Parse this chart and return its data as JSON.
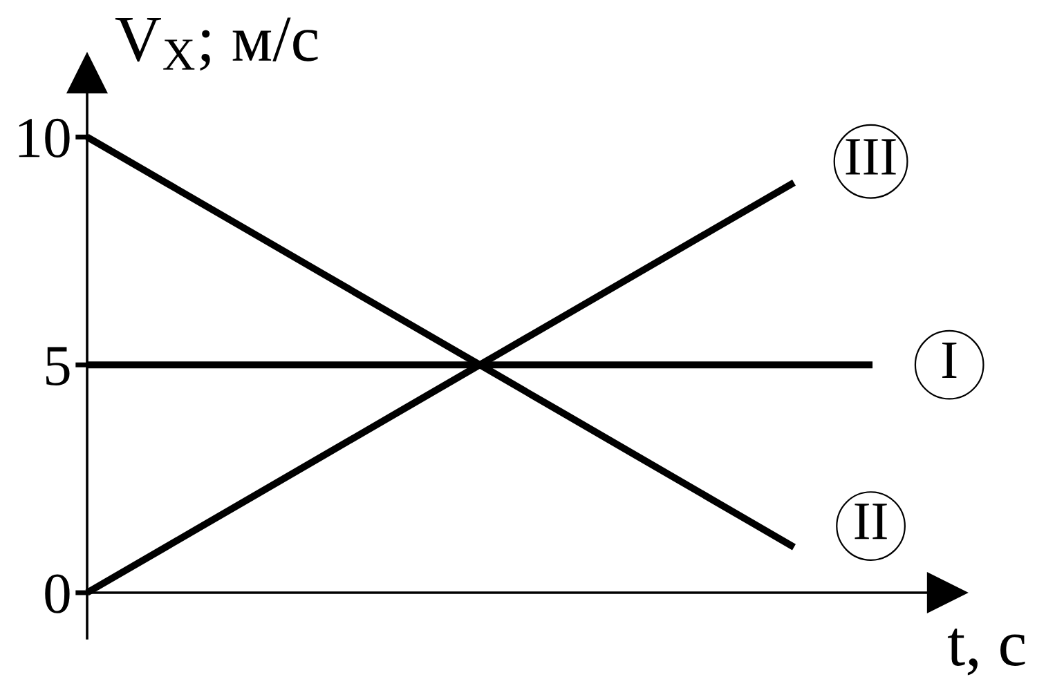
{
  "chart_data": {
    "type": "line",
    "xlabel": "t, с",
    "ylabel": "V$_{X}$; м/с",
    "categories": [
      null,
      null,
      null,
      null,
      null,
      null,
      null,
      null,
      null,
      null,
      null
    ],
    "series": [
      {
        "name": "I",
        "color": "#000000",
        "values": [
          5,
          5,
          5,
          5,
          5,
          5,
          5,
          5,
          5,
          5,
          5
        ]
      },
      {
        "name": "II",
        "color": "#000000",
        "values": [
          10,
          9,
          8,
          7,
          6,
          5,
          4,
          3,
          2,
          1,
          null
        ]
      },
      {
        "name": "III",
        "color": "#000000",
        "values": [
          0,
          1,
          2,
          3,
          4,
          5,
          6,
          7,
          8,
          9,
          null
        ]
      }
    ],
    "ylim": [
      -1,
      11.4
    ],
    "yticks": [
      0,
      5,
      10
    ],
    "line_style": "solid"
  }
}
